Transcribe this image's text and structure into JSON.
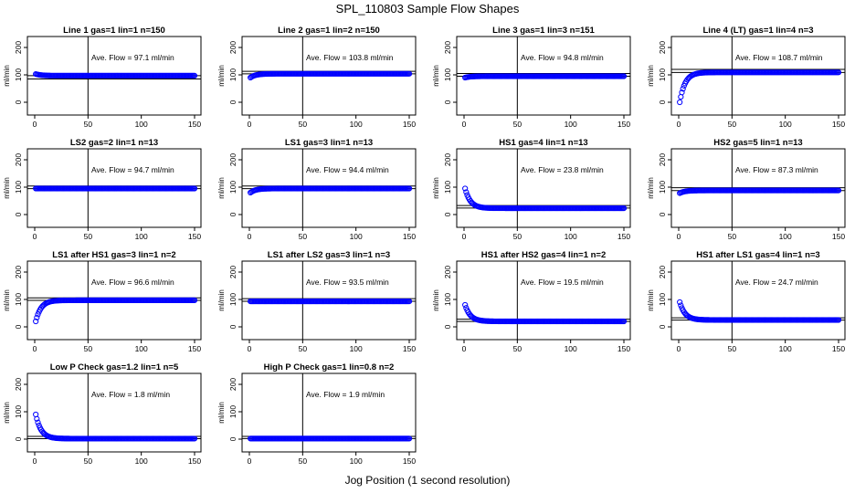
{
  "figure": {
    "title": "SPL_110803  Sample Flow Shapes",
    "xlabel": "Jog Position (1 second resolution)"
  },
  "colors": {
    "points": "#0000ff",
    "axes": "#000000"
  },
  "chart_data": [
    {
      "type": "scatter",
      "title": "Line 1 gas=1 lin=1 n=150",
      "annotation": "Ave. Flow = 97.1  ml/min",
      "ylabel": "ml/min",
      "xlim": [
        0,
        150
      ],
      "ylim": [
        0,
        200
      ],
      "xticks": [
        0,
        50,
        100,
        150
      ],
      "yticks": [
        0,
        100,
        200
      ],
      "vline": 50,
      "hlines": [
        97.1,
        85
      ],
      "series": [
        {
          "shape": "decay",
          "start": 103,
          "end": 97,
          "n": 150
        }
      ]
    },
    {
      "type": "scatter",
      "title": "Line 2 gas=1 lin=2 n=150",
      "annotation": "Ave. Flow = 103.8  ml/min",
      "ylabel": "ml/min",
      "xlim": [
        0,
        150
      ],
      "ylim": [
        0,
        200
      ],
      "xticks": [
        0,
        50,
        100,
        150
      ],
      "yticks": [
        0,
        100,
        200
      ],
      "vline": 50,
      "hlines": [
        103.8,
        113
      ],
      "series": [
        {
          "shape": "decay",
          "start": 90,
          "end": 104,
          "n": 150
        }
      ]
    },
    {
      "type": "scatter",
      "title": "Line 3 gas=1 lin=3 n=151",
      "annotation": "Ave. Flow = 94.8  ml/min",
      "ylabel": "ml/min",
      "xlim": [
        0,
        150
      ],
      "ylim": [
        0,
        200
      ],
      "xticks": [
        0,
        50,
        100,
        150
      ],
      "yticks": [
        0,
        100,
        200
      ],
      "vline": 50,
      "hlines": [
        94.8,
        105
      ],
      "series": [
        {
          "shape": "decay",
          "start": 90,
          "end": 95,
          "n": 151
        }
      ]
    },
    {
      "type": "scatter",
      "title": "Line 4 (LT) gas=1 lin=4 n=3",
      "annotation": "Ave. Flow = 108.7  ml/min",
      "ylabel": "ml/min",
      "xlim": [
        0,
        150
      ],
      "ylim": [
        0,
        200
      ],
      "xticks": [
        0,
        50,
        100,
        150
      ],
      "yticks": [
        0,
        100,
        200
      ],
      "vline": 50,
      "hlines": [
        108.7,
        120
      ],
      "series": [
        {
          "shape": "decay",
          "start": 0,
          "end": 109,
          "n": 150
        }
      ]
    },
    {
      "type": "scatter",
      "title": "LS2 gas=2 lin=1 n=13",
      "annotation": "Ave. Flow = 94.7  ml/min",
      "ylabel": "ml/min",
      "xlim": [
        0,
        150
      ],
      "ylim": [
        0,
        200
      ],
      "xticks": [
        0,
        50,
        100,
        150
      ],
      "yticks": [
        0,
        100,
        200
      ],
      "vline": 50,
      "hlines": [
        94.7,
        104
      ],
      "series": [
        {
          "shape": "decay",
          "start": 95,
          "end": 95,
          "n": 150
        }
      ]
    },
    {
      "type": "scatter",
      "title": "LS1 gas=3 lin=1 n=13",
      "annotation": "Ave. Flow = 94.4  ml/min",
      "ylabel": "ml/min",
      "xlim": [
        0,
        150
      ],
      "ylim": [
        0,
        200
      ],
      "xticks": [
        0,
        50,
        100,
        150
      ],
      "yticks": [
        0,
        100,
        200
      ],
      "vline": 50,
      "hlines": [
        94.4,
        104
      ],
      "series": [
        {
          "shape": "decay",
          "start": 80,
          "end": 95,
          "n": 150
        }
      ]
    },
    {
      "type": "scatter",
      "title": "HS1 gas=4 lin=1 n=13",
      "annotation": "Ave. Flow = 23.8  ml/min",
      "ylabel": "ml/min",
      "xlim": [
        0,
        150
      ],
      "ylim": [
        0,
        200
      ],
      "xticks": [
        0,
        50,
        100,
        150
      ],
      "yticks": [
        0,
        100,
        200
      ],
      "vline": 50,
      "hlines": [
        23.8,
        33
      ],
      "series": [
        {
          "shape": "decay",
          "start": 95,
          "end": 23,
          "n": 150
        }
      ]
    },
    {
      "type": "scatter",
      "title": "HS2 gas=5 lin=1 n=13",
      "annotation": "Ave. Flow = 87.3  ml/min",
      "ylabel": "ml/min",
      "xlim": [
        0,
        150
      ],
      "ylim": [
        0,
        200
      ],
      "xticks": [
        0,
        50,
        100,
        150
      ],
      "yticks": [
        0,
        100,
        200
      ],
      "vline": 50,
      "hlines": [
        87.3,
        98
      ],
      "series": [
        {
          "shape": "decay",
          "start": 78,
          "end": 88,
          "n": 150
        }
      ]
    },
    {
      "type": "scatter",
      "title": "LS1 after HS1 gas=3 lin=1 n=2",
      "annotation": "Ave. Flow = 96.6  ml/min",
      "ylabel": "ml/min",
      "xlim": [
        0,
        150
      ],
      "ylim": [
        0,
        200
      ],
      "xticks": [
        0,
        50,
        100,
        150
      ],
      "yticks": [
        0,
        100,
        200
      ],
      "vline": 50,
      "hlines": [
        96.6,
        106
      ],
      "series": [
        {
          "shape": "decay",
          "start": 20,
          "end": 97,
          "n": 150
        }
      ]
    },
    {
      "type": "scatter",
      "title": "LS1 after LS2 gas=3 lin=1 n=3",
      "annotation": "Ave. Flow = 93.5  ml/min",
      "ylabel": "ml/min",
      "xlim": [
        0,
        150
      ],
      "ylim": [
        0,
        200
      ],
      "xticks": [
        0,
        50,
        100,
        150
      ],
      "yticks": [
        0,
        100,
        200
      ],
      "vline": 50,
      "hlines": [
        93.5,
        103
      ],
      "series": [
        {
          "shape": "decay",
          "start": 93,
          "end": 93,
          "n": 150
        }
      ]
    },
    {
      "type": "scatter",
      "title": "HS1 after HS2 gas=4 lin=1 n=2",
      "annotation": "Ave. Flow = 19.5  ml/min",
      "ylabel": "ml/min",
      "xlim": [
        0,
        150
      ],
      "ylim": [
        0,
        200
      ],
      "xticks": [
        0,
        50,
        100,
        150
      ],
      "yticks": [
        0,
        100,
        200
      ],
      "vline": 50,
      "hlines": [
        19.5,
        28
      ],
      "series": [
        {
          "shape": "decay",
          "start": 80,
          "end": 20,
          "n": 150
        }
      ]
    },
    {
      "type": "scatter",
      "title": "HS1 after LS1 gas=4 lin=1 n=3",
      "annotation": "Ave. Flow = 24.7  ml/min",
      "ylabel": "ml/min",
      "xlim": [
        0,
        150
      ],
      "ylim": [
        0,
        200
      ],
      "xticks": [
        0,
        50,
        100,
        150
      ],
      "yticks": [
        0,
        100,
        200
      ],
      "vline": 50,
      "hlines": [
        24.7,
        33
      ],
      "series": [
        {
          "shape": "decay",
          "start": 90,
          "end": 25,
          "n": 150
        }
      ]
    },
    {
      "type": "scatter",
      "title": "Low P Check gas=1.2 lin=1 n=5",
      "annotation": "Ave. Flow = 1.8  ml/min",
      "ylabel": "ml/min",
      "xlim": [
        0,
        150
      ],
      "ylim": [
        0,
        200
      ],
      "xticks": [
        0,
        50,
        100,
        150
      ],
      "yticks": [
        0,
        100,
        200
      ],
      "vline": 50,
      "hlines": [
        1.8,
        10
      ],
      "series": [
        {
          "shape": "decay",
          "start": 90,
          "end": 1.8,
          "n": 150
        }
      ]
    },
    {
      "type": "scatter",
      "title": "High P Check gas=1 lin=0.8 n=2",
      "annotation": "Ave. Flow = 1.9  ml/min",
      "ylabel": "ml/min",
      "xlim": [
        0,
        150
      ],
      "ylim": [
        0,
        200
      ],
      "xticks": [
        0,
        50,
        100,
        150
      ],
      "yticks": [
        0,
        100,
        200
      ],
      "vline": 50,
      "hlines": [
        1.9,
        10
      ],
      "series": [
        {
          "shape": "decay",
          "start": 2,
          "end": 2,
          "n": 150
        }
      ]
    }
  ]
}
